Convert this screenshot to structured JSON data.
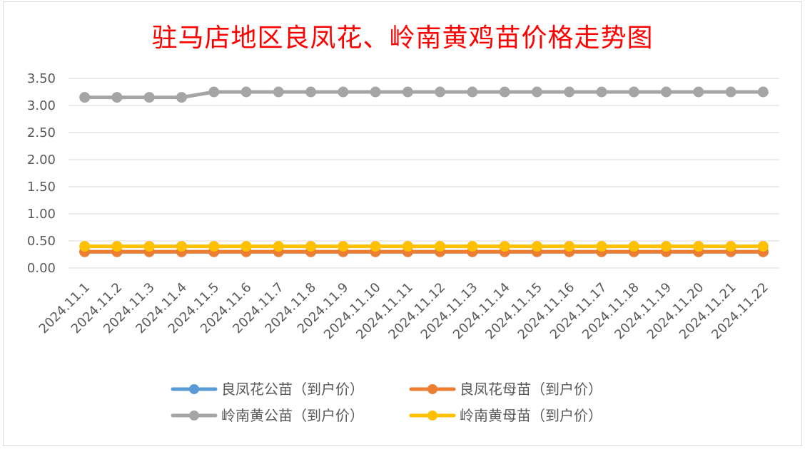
{
  "chart_data": {
    "type": "line",
    "title": "驻马店地区良凤花、岭南黄鸡苗价格走势图",
    "xlabel": "",
    "ylabel": "",
    "ylim": [
      0,
      3.5
    ],
    "yticks": [
      "0.00",
      "0.50",
      "1.00",
      "1.50",
      "2.00",
      "2.50",
      "3.00",
      "3.50"
    ],
    "grid": true,
    "legend_position": "bottom",
    "categories": [
      "2024.11.1",
      "2024.11.2",
      "2024.11.3",
      "2024.11.4",
      "2024.11.5",
      "2024.11.6",
      "2024.11.7",
      "2024.11.8",
      "2024.11.9",
      "2024.11.10",
      "2024.11.11",
      "2024.11.12",
      "2024.11.13",
      "2024.11.14",
      "2024.11.15",
      "2024.11.16",
      "2024.11.17",
      "2024.11.18",
      "2024.11.19",
      "2024.11.20",
      "2024.11.21",
      "2024.11.22"
    ],
    "series": [
      {
        "name": "良凤花公苗（到户价）",
        "color": "#5b9bd5",
        "values": [
          0.3,
          0.3,
          0.3,
          0.3,
          0.3,
          0.3,
          0.3,
          0.3,
          0.3,
          0.3,
          0.3,
          0.3,
          0.3,
          0.3,
          0.3,
          0.3,
          0.3,
          0.3,
          0.3,
          0.3,
          0.3,
          0.3
        ]
      },
      {
        "name": "良凤花母苗（到户价）",
        "color": "#ed7d31",
        "values": [
          0.3,
          0.3,
          0.3,
          0.3,
          0.3,
          0.3,
          0.3,
          0.3,
          0.3,
          0.3,
          0.3,
          0.3,
          0.3,
          0.3,
          0.3,
          0.3,
          0.3,
          0.3,
          0.3,
          0.3,
          0.3,
          0.3
        ]
      },
      {
        "name": "岭南黄公苗（到户价）",
        "color": "#a5a5a5",
        "values": [
          3.15,
          3.15,
          3.15,
          3.15,
          3.25,
          3.25,
          3.25,
          3.25,
          3.25,
          3.25,
          3.25,
          3.25,
          3.25,
          3.25,
          3.25,
          3.25,
          3.25,
          3.25,
          3.25,
          3.25,
          3.25,
          3.25
        ]
      },
      {
        "name": "岭南黄母苗（到户价）",
        "color": "#ffc000",
        "values": [
          0.4,
          0.4,
          0.4,
          0.4,
          0.4,
          0.4,
          0.4,
          0.4,
          0.4,
          0.4,
          0.4,
          0.4,
          0.4,
          0.4,
          0.4,
          0.4,
          0.4,
          0.4,
          0.4,
          0.4,
          0.4,
          0.4
        ]
      }
    ]
  }
}
